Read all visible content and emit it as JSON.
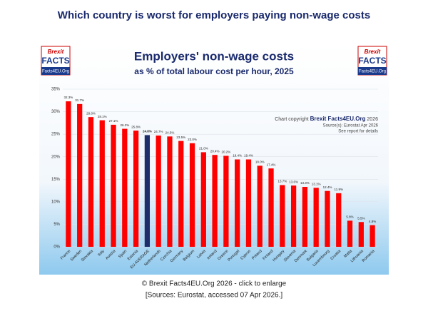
{
  "header": {
    "title": "Which country is worst for employers paying non-wage costs"
  },
  "logo": {
    "line1": "Brexit",
    "line2": "FACTS",
    "line3": "Facts4EU.Org"
  },
  "chart_data": {
    "type": "bar",
    "title": "Employers' non-wage costs",
    "subtitle": "as % of total labour cost per hour, 2025",
    "categories": [
      "France",
      "Sweden",
      "Slovakia",
      "Italy",
      "Austria",
      "Spain",
      "Estonia",
      "EU AVERAGE",
      "Netherlands",
      "Czechia",
      "Germany",
      "Belgium",
      "Latvia",
      "Ireland",
      "Greece",
      "Portugal",
      "Cyprus",
      "Poland",
      "Finland",
      "Hungary",
      "Slovenia",
      "Denmark",
      "Bulgaria",
      "Luxembourg",
      "Croatia",
      "Malta",
      "Lithuania",
      "Romania"
    ],
    "values": [
      32.3,
      31.7,
      28.8,
      28.1,
      27.1,
      26.2,
      25.8,
      24.8,
      24.7,
      24.5,
      23.5,
      23.0,
      21.0,
      20.4,
      20.2,
      19.4,
      19.4,
      18.0,
      17.4,
      13.7,
      13.6,
      13.3,
      13.1,
      12.4,
      11.9,
      5.8,
      5.5,
      4.8
    ],
    "value_labels": [
      "32.3%",
      "31.7%",
      "28.8%",
      "28.1%",
      "27.1%",
      "26.2%",
      "25.8%",
      "24.8%",
      "24.7%",
      "24.5%",
      "23.5%",
      "23.0%",
      "21.0%",
      "20.4%",
      "20.2%",
      "19.4%",
      "19.4%",
      "18.0%",
      "17.4%",
      "13.7%",
      "13.6%",
      "13.3%",
      "13.1%",
      "12.4%",
      "11.9%",
      "5.8%",
      "5.5%",
      "4.8%"
    ],
    "colors": [
      "#ff0000",
      "#ff0000",
      "#ff0000",
      "#ff0000",
      "#ff0000",
      "#ff0000",
      "#ff0000",
      "#1f2d6b",
      "#ff0000",
      "#ff0000",
      "#ff0000",
      "#ff0000",
      "#ff0000",
      "#ff0000",
      "#ff0000",
      "#ff0000",
      "#ff0000",
      "#ff0000",
      "#ff0000",
      "#ff0000",
      "#ff0000",
      "#ff0000",
      "#ff0000",
      "#ff0000",
      "#ff0000",
      "#ff0000",
      "#ff0000",
      "#ff0000"
    ],
    "ylim": [
      0,
      35
    ],
    "yticks": [
      {
        "value": 0,
        "label": "0%"
      },
      {
        "value": 5,
        "label": "5%"
      },
      {
        "value": 10,
        "label": "10%"
      },
      {
        "value": 15,
        "label": "15%"
      },
      {
        "value": 20,
        "label": "20%"
      },
      {
        "value": 25,
        "label": "25%"
      },
      {
        "value": 30,
        "label": "30%"
      },
      {
        "value": 35,
        "label": "35%"
      }
    ],
    "grid": true,
    "copyright": {
      "prefix": "Chart copyright ",
      "brand": "Brexit Facts4EU.Org",
      "suffix": " 2026",
      "source": "Source(s): Eurostat Apr 2026",
      "note": "See report for details"
    }
  },
  "caption": {
    "line1": "© Brexit Facts4EU.Org 2026 - click to enlarge",
    "line2": "[Sources: Eurostat, accessed 07 Apr 2026.]"
  }
}
